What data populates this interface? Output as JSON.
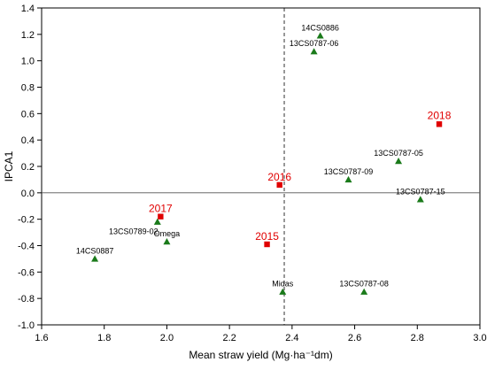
{
  "chart_data": {
    "type": "scatter",
    "title": "",
    "xlabel": "Mean straw yield (Mg·ha⁻¹dm)",
    "ylabel": "IPCA1",
    "xlim": [
      1.6,
      3.0
    ],
    "ylim": [
      -1.0,
      1.4
    ],
    "x_ticks": [
      "1.6",
      "1.8",
      "2.0",
      "2.2",
      "2.4",
      "2.6",
      "2.8",
      "3.0"
    ],
    "y_ticks": [
      "-1.0",
      "-0.8",
      "-0.6",
      "-0.4",
      "-0.2",
      "0.0",
      "0.2",
      "0.4",
      "0.6",
      "0.8",
      "1.0",
      "1.2",
      "1.4"
    ],
    "reference_lines": {
      "vertical_x": 2.375,
      "vertical_style": "dashed",
      "horizontal_y": 0.0
    },
    "grid": false,
    "legend": false,
    "series": [
      {
        "marker": "triangle",
        "color": "#1a7a1a",
        "points": [
          {
            "label": "14CS0886",
            "x": 2.49,
            "y": 1.19
          },
          {
            "label": "13CS0787-06",
            "x": 2.47,
            "y": 1.07
          },
          {
            "label": "13CS0787-05",
            "x": 2.74,
            "y": 0.24
          },
          {
            "label": "13CS0787-09",
            "x": 2.58,
            "y": 0.1
          },
          {
            "label": "13CS0787-15",
            "x": 2.81,
            "y": -0.05
          },
          {
            "label": "13CS0789-02",
            "x": 1.97,
            "y": -0.22
          },
          {
            "label": "Omega",
            "x": 2.0,
            "y": -0.37
          },
          {
            "label": "14CS0887",
            "x": 1.77,
            "y": -0.5
          },
          {
            "label": "Midas",
            "x": 2.37,
            "y": -0.75
          },
          {
            "label": "13CS0787-08",
            "x": 2.63,
            "y": -0.75
          }
        ]
      },
      {
        "marker": "square",
        "color": "#e00000",
        "points": [
          {
            "label": "2018",
            "x": 2.87,
            "y": 0.52
          },
          {
            "label": "2016",
            "x": 2.36,
            "y": 0.06
          },
          {
            "label": "2017",
            "x": 1.98,
            "y": -0.18
          },
          {
            "label": "2015",
            "x": 2.32,
            "y": -0.39
          }
        ]
      }
    ]
  }
}
